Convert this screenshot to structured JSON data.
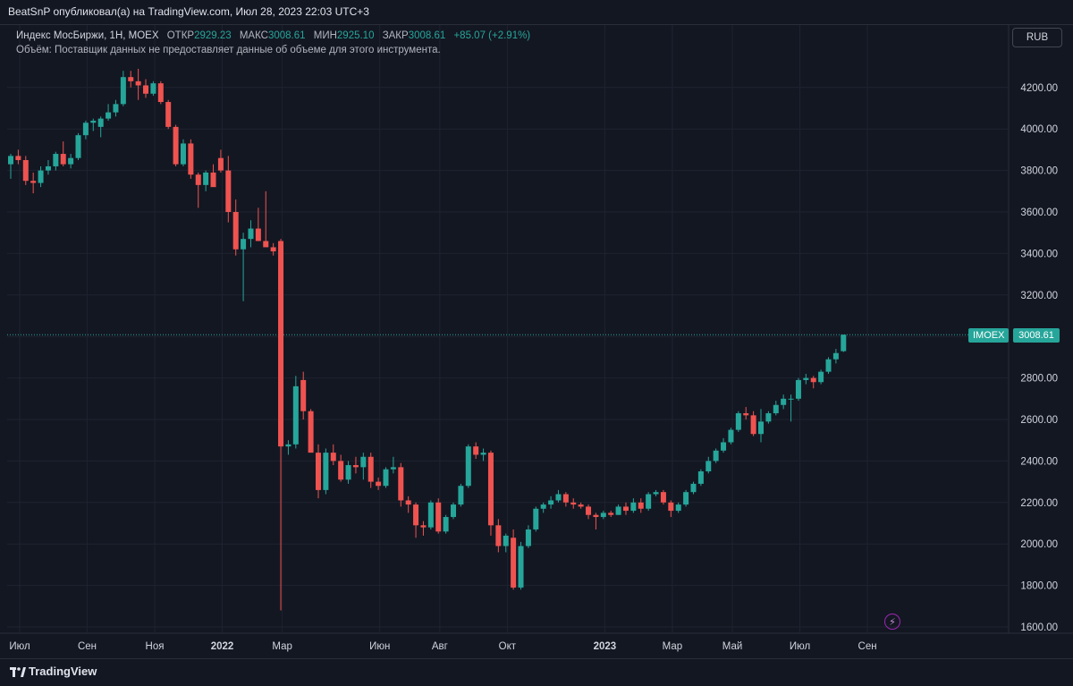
{
  "header": {
    "publish_line": "BeatSnP опубликовал(а) на TradingView.com, Июл 28, 2023 22:03 UTC+3"
  },
  "legend": {
    "symbol": "Индекс МосБиржи, 1Н, MOEX",
    "open_label": "ОТКР",
    "open_value": "2929.23",
    "high_label": "МАКС",
    "high_value": "3008.61",
    "low_label": "МИН",
    "low_value": "2925.10",
    "close_label": "ЗАКР",
    "close_value": "3008.61",
    "change": "+85.07 (+2.91%)",
    "volume_note": "Объём: Поставщик данных не предоставляет данные об объеме для этого инструмента."
  },
  "currency": "RUB",
  "last_price": {
    "ticker": "IMOEX",
    "value": "3008.61"
  },
  "footer": {
    "brand": "TradingView"
  },
  "colors": {
    "up": "#26a69a",
    "down": "#ef5350",
    "grid": "#1f2330",
    "background": "#131722"
  },
  "icons": {
    "bolt": "lightning-icon",
    "logo": "tradingview-logo-icon"
  },
  "chart_data": {
    "type": "candlestick",
    "y_ticks": [
      "1600.00",
      "1800.00",
      "2000.00",
      "2200.00",
      "2400.00",
      "2600.00",
      "2800.00",
      "3000.00",
      "3200.00",
      "3400.00",
      "3600.00",
      "3800.00",
      "4000.00",
      "4200.00"
    ],
    "ylim": [
      1600,
      4300
    ],
    "x_ticks": [
      "Июл",
      "Сен",
      "Ноя",
      "2022",
      "Мар",
      "Июн",
      "Авг",
      "Окт",
      "2023",
      "Мар",
      "Май",
      "Июл",
      "Сен"
    ],
    "x_tick_weeks": [
      0,
      9,
      18,
      27,
      35,
      48,
      56,
      65,
      78,
      87,
      95,
      104,
      113
    ],
    "candles": [
      {
        "o": 3830,
        "h": 3880,
        "l": 3760,
        "c": 3870
      },
      {
        "o": 3870,
        "h": 3900,
        "l": 3830,
        "c": 3850
      },
      {
        "o": 3850,
        "h": 3870,
        "l": 3730,
        "c": 3750
      },
      {
        "o": 3750,
        "h": 3790,
        "l": 3690,
        "c": 3740
      },
      {
        "o": 3740,
        "h": 3820,
        "l": 3720,
        "c": 3800
      },
      {
        "o": 3800,
        "h": 3850,
        "l": 3780,
        "c": 3820
      },
      {
        "o": 3820,
        "h": 3890,
        "l": 3800,
        "c": 3880
      },
      {
        "o": 3880,
        "h": 3940,
        "l": 3820,
        "c": 3830
      },
      {
        "o": 3830,
        "h": 3880,
        "l": 3810,
        "c": 3860
      },
      {
        "o": 3860,
        "h": 3980,
        "l": 3850,
        "c": 3970
      },
      {
        "o": 3970,
        "h": 4040,
        "l": 3950,
        "c": 4030
      },
      {
        "o": 4030,
        "h": 4050,
        "l": 3990,
        "c": 4040
      },
      {
        "o": 4010,
        "h": 4060,
        "l": 3960,
        "c": 4050
      },
      {
        "o": 4050,
        "h": 4120,
        "l": 4040,
        "c": 4080
      },
      {
        "o": 4080,
        "h": 4140,
        "l": 4060,
        "c": 4120
      },
      {
        "o": 4120,
        "h": 4280,
        "l": 4110,
        "c": 4250
      },
      {
        "o": 4250,
        "h": 4280,
        "l": 4200,
        "c": 4230
      },
      {
        "o": 4230,
        "h": 4290,
        "l": 4140,
        "c": 4210
      },
      {
        "o": 4210,
        "h": 4240,
        "l": 4150,
        "c": 4170
      },
      {
        "o": 4170,
        "h": 4230,
        "l": 4160,
        "c": 4220
      },
      {
        "o": 4220,
        "h": 4230,
        "l": 4120,
        "c": 4130
      },
      {
        "o": 4130,
        "h": 4140,
        "l": 4000,
        "c": 4010
      },
      {
        "o": 4010,
        "h": 4020,
        "l": 3820,
        "c": 3830
      },
      {
        "o": 3830,
        "h": 3950,
        "l": 3820,
        "c": 3930
      },
      {
        "o": 3930,
        "h": 3950,
        "l": 3760,
        "c": 3780
      },
      {
        "o": 3780,
        "h": 3790,
        "l": 3620,
        "c": 3730
      },
      {
        "o": 3730,
        "h": 3800,
        "l": 3700,
        "c": 3790
      },
      {
        "o": 3790,
        "h": 3830,
        "l": 3740,
        "c": 3720
      },
      {
        "o": 3860,
        "h": 3900,
        "l": 3790,
        "c": 3800
      },
      {
        "o": 3800,
        "h": 3870,
        "l": 3550,
        "c": 3600
      },
      {
        "o": 3600,
        "h": 3660,
        "l": 3390,
        "c": 3420
      },
      {
        "o": 3420,
        "h": 3500,
        "l": 3170,
        "c": 3470
      },
      {
        "o": 3470,
        "h": 3560,
        "l": 3430,
        "c": 3520
      },
      {
        "o": 3520,
        "h": 3620,
        "l": 3460,
        "c": 3460
      },
      {
        "o": 3460,
        "h": 3700,
        "l": 3440,
        "c": 3430
      },
      {
        "o": 3430,
        "h": 3450,
        "l": 3390,
        "c": 3410
      },
      {
        "o": 3460,
        "h": 3470,
        "l": 1680,
        "c": 2470
      },
      {
        "o": 2470,
        "h": 2500,
        "l": 2430,
        "c": 2480
      },
      {
        "o": 2480,
        "h": 2810,
        "l": 2460,
        "c": 2760
      },
      {
        "o": 2790,
        "h": 2830,
        "l": 2600,
        "c": 2640
      },
      {
        "o": 2640,
        "h": 2650,
        "l": 2450,
        "c": 2440
      },
      {
        "o": 2440,
        "h": 2480,
        "l": 2220,
        "c": 2260
      },
      {
        "o": 2260,
        "h": 2460,
        "l": 2240,
        "c": 2440
      },
      {
        "o": 2440,
        "h": 2480,
        "l": 2380,
        "c": 2400
      },
      {
        "o": 2400,
        "h": 2430,
        "l": 2300,
        "c": 2310
      },
      {
        "o": 2310,
        "h": 2400,
        "l": 2290,
        "c": 2380
      },
      {
        "o": 2380,
        "h": 2420,
        "l": 2340,
        "c": 2370
      },
      {
        "o": 2370,
        "h": 2440,
        "l": 2310,
        "c": 2420
      },
      {
        "o": 2420,
        "h": 2440,
        "l": 2270,
        "c": 2300
      },
      {
        "o": 2300,
        "h": 2320,
        "l": 2260,
        "c": 2280
      },
      {
        "o": 2280,
        "h": 2370,
        "l": 2270,
        "c": 2360
      },
      {
        "o": 2360,
        "h": 2420,
        "l": 2340,
        "c": 2370
      },
      {
        "o": 2370,
        "h": 2390,
        "l": 2180,
        "c": 2210
      },
      {
        "o": 2210,
        "h": 2230,
        "l": 2150,
        "c": 2190
      },
      {
        "o": 2190,
        "h": 2200,
        "l": 2030,
        "c": 2090
      },
      {
        "o": 2090,
        "h": 2110,
        "l": 2040,
        "c": 2080
      },
      {
        "o": 2080,
        "h": 2210,
        "l": 2070,
        "c": 2200
      },
      {
        "o": 2200,
        "h": 2220,
        "l": 2050,
        "c": 2060
      },
      {
        "o": 2060,
        "h": 2140,
        "l": 2050,
        "c": 2130
      },
      {
        "o": 2130,
        "h": 2200,
        "l": 2120,
        "c": 2190
      },
      {
        "o": 2190,
        "h": 2290,
        "l": 2180,
        "c": 2280
      },
      {
        "o": 2280,
        "h": 2480,
        "l": 2270,
        "c": 2470
      },
      {
        "o": 2470,
        "h": 2490,
        "l": 2410,
        "c": 2430
      },
      {
        "o": 2430,
        "h": 2460,
        "l": 2400,
        "c": 2440
      },
      {
        "o": 2440,
        "h": 2450,
        "l": 2040,
        "c": 2090
      },
      {
        "o": 2090,
        "h": 2120,
        "l": 1960,
        "c": 1990
      },
      {
        "o": 1990,
        "h": 2050,
        "l": 1960,
        "c": 2040
      },
      {
        "o": 2030,
        "h": 2070,
        "l": 1780,
        "c": 1790
      },
      {
        "o": 1790,
        "h": 2010,
        "l": 1780,
        "c": 1990
      },
      {
        "o": 1990,
        "h": 2090,
        "l": 1980,
        "c": 2070
      },
      {
        "o": 2070,
        "h": 2180,
        "l": 2060,
        "c": 2170
      },
      {
        "o": 2170,
        "h": 2200,
        "l": 2150,
        "c": 2190
      },
      {
        "o": 2190,
        "h": 2230,
        "l": 2170,
        "c": 2210
      },
      {
        "o": 2210,
        "h": 2260,
        "l": 2200,
        "c": 2240
      },
      {
        "o": 2240,
        "h": 2250,
        "l": 2180,
        "c": 2200
      },
      {
        "o": 2200,
        "h": 2220,
        "l": 2170,
        "c": 2190
      },
      {
        "o": 2190,
        "h": 2200,
        "l": 2170,
        "c": 2180
      },
      {
        "o": 2180,
        "h": 2190,
        "l": 2120,
        "c": 2140
      },
      {
        "o": 2140,
        "h": 2150,
        "l": 2070,
        "c": 2130
      },
      {
        "o": 2130,
        "h": 2160,
        "l": 2120,
        "c": 2150
      },
      {
        "o": 2150,
        "h": 2160,
        "l": 2130,
        "c": 2140
      },
      {
        "o": 2140,
        "h": 2190,
        "l": 2140,
        "c": 2180
      },
      {
        "o": 2180,
        "h": 2200,
        "l": 2140,
        "c": 2160
      },
      {
        "o": 2160,
        "h": 2220,
        "l": 2150,
        "c": 2200
      },
      {
        "o": 2200,
        "h": 2220,
        "l": 2150,
        "c": 2170
      },
      {
        "o": 2170,
        "h": 2250,
        "l": 2160,
        "c": 2240
      },
      {
        "o": 2240,
        "h": 2260,
        "l": 2230,
        "c": 2250
      },
      {
        "o": 2250,
        "h": 2260,
        "l": 2190,
        "c": 2200
      },
      {
        "o": 2200,
        "h": 2210,
        "l": 2130,
        "c": 2160
      },
      {
        "o": 2160,
        "h": 2200,
        "l": 2150,
        "c": 2190
      },
      {
        "o": 2190,
        "h": 2260,
        "l": 2180,
        "c": 2250
      },
      {
        "o": 2250,
        "h": 2300,
        "l": 2240,
        "c": 2290
      },
      {
        "o": 2290,
        "h": 2360,
        "l": 2280,
        "c": 2350
      },
      {
        "o": 2350,
        "h": 2420,
        "l": 2340,
        "c": 2400
      },
      {
        "o": 2400,
        "h": 2460,
        "l": 2390,
        "c": 2450
      },
      {
        "o": 2450,
        "h": 2510,
        "l": 2440,
        "c": 2490
      },
      {
        "o": 2490,
        "h": 2560,
        "l": 2480,
        "c": 2550
      },
      {
        "o": 2550,
        "h": 2640,
        "l": 2540,
        "c": 2630
      },
      {
        "o": 2630,
        "h": 2660,
        "l": 2600,
        "c": 2620
      },
      {
        "o": 2620,
        "h": 2640,
        "l": 2520,
        "c": 2530
      },
      {
        "o": 2530,
        "h": 2650,
        "l": 2490,
        "c": 2590
      },
      {
        "o": 2590,
        "h": 2640,
        "l": 2580,
        "c": 2630
      },
      {
        "o": 2630,
        "h": 2690,
        "l": 2620,
        "c": 2670
      },
      {
        "o": 2670,
        "h": 2720,
        "l": 2650,
        "c": 2700
      },
      {
        "o": 2700,
        "h": 2720,
        "l": 2590,
        "c": 2700
      },
      {
        "o": 2700,
        "h": 2800,
        "l": 2690,
        "c": 2790
      },
      {
        "o": 2790,
        "h": 2820,
        "l": 2770,
        "c": 2800
      },
      {
        "o": 2800,
        "h": 2810,
        "l": 2750,
        "c": 2780
      },
      {
        "o": 2780,
        "h": 2840,
        "l": 2770,
        "c": 2830
      },
      {
        "o": 2830,
        "h": 2900,
        "l": 2820,
        "c": 2890
      },
      {
        "o": 2890,
        "h": 2940,
        "l": 2870,
        "c": 2920
      },
      {
        "o": 2929.23,
        "h": 3008.61,
        "l": 2925.1,
        "c": 3008.61
      }
    ]
  }
}
